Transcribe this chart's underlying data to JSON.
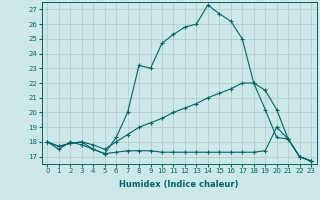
{
  "xlabel": "Humidex (Indice chaleur)",
  "ylabel": "",
  "bg_color": "#cce8e8",
  "line_color": "#006666",
  "grid_color": "#aacccc",
  "xlim": [
    -0.5,
    23.5
  ],
  "ylim": [
    16.5,
    27.5
  ],
  "xticks": [
    0,
    1,
    2,
    3,
    4,
    5,
    6,
    7,
    8,
    9,
    10,
    11,
    12,
    13,
    14,
    15,
    16,
    17,
    18,
    19,
    20,
    21,
    22,
    23
  ],
  "yticks": [
    17,
    18,
    19,
    20,
    21,
    22,
    23,
    24,
    25,
    26,
    27
  ],
  "line1_x": [
    0,
    1,
    2,
    3,
    4,
    5,
    6,
    7,
    8,
    9,
    10,
    11,
    12,
    13,
    14,
    15,
    16,
    17,
    18,
    19,
    20,
    21,
    22,
    23
  ],
  "line1_y": [
    18.0,
    17.5,
    18.0,
    17.8,
    17.5,
    17.2,
    18.3,
    20.0,
    23.2,
    23.0,
    24.7,
    25.3,
    25.8,
    26.0,
    27.3,
    26.7,
    26.2,
    25.0,
    22.0,
    20.2,
    18.3,
    18.2,
    17.0,
    16.7
  ],
  "line2_x": [
    0,
    1,
    2,
    3,
    4,
    5,
    6,
    7,
    8,
    9,
    10,
    11,
    12,
    13,
    14,
    15,
    16,
    17,
    18,
    19,
    20,
    21,
    22,
    23
  ],
  "line2_y": [
    18.0,
    17.7,
    17.9,
    18.0,
    17.8,
    17.5,
    18.0,
    18.5,
    19.0,
    19.3,
    19.6,
    20.0,
    20.3,
    20.6,
    21.0,
    21.3,
    21.6,
    22.0,
    22.0,
    21.5,
    20.2,
    18.2,
    17.0,
    16.7
  ],
  "line3_x": [
    0,
    1,
    2,
    3,
    4,
    5,
    6,
    7,
    8,
    9,
    10,
    11,
    12,
    13,
    14,
    15,
    16,
    17,
    18,
    19,
    20,
    21,
    22,
    23
  ],
  "line3_y": [
    18.0,
    17.7,
    17.9,
    18.0,
    17.5,
    17.2,
    17.3,
    17.4,
    17.4,
    17.4,
    17.3,
    17.3,
    17.3,
    17.3,
    17.3,
    17.3,
    17.3,
    17.3,
    17.3,
    17.4,
    19.0,
    18.2,
    17.0,
    16.7
  ]
}
